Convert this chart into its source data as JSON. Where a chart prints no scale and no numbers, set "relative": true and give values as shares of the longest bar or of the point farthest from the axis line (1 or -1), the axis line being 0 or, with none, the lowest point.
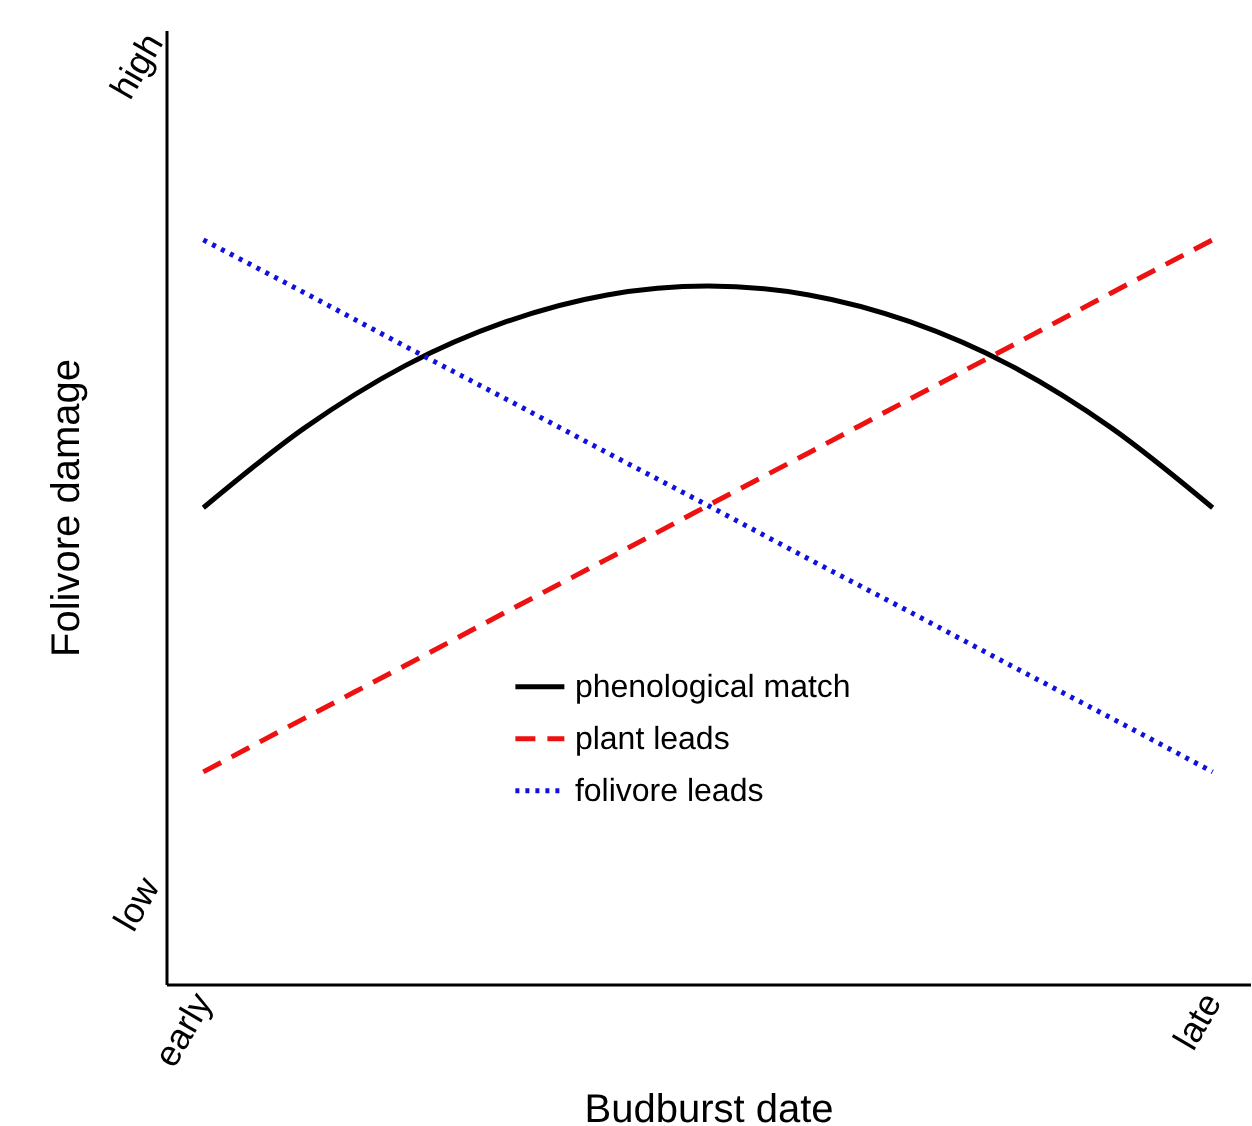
{
  "chart_data": {
    "type": "line",
    "xlabel": "Budburst date",
    "ylabel": "Folivore damage",
    "relative": true,
    "categories": [
      "early",
      null,
      null,
      null,
      null,
      null,
      null,
      null,
      null,
      null,
      "late"
    ],
    "annotations": [
      "low",
      "high"
    ],
    "grid": false,
    "legend": "bottom",
    "marker": "none",
    "series": [
      {
        "name": "phenological match",
        "color": "#000000",
        "line_style": "solid",
        "values": [
          0.64,
          0.747,
          0.831,
          0.89,
          0.926,
          0.938,
          0.926,
          0.89,
          0.831,
          0.747,
          0.64
        ]
      },
      {
        "name": "plant leads",
        "color": "#ee1111",
        "line_style": "dashed",
        "values": [
          0.285,
          0.357,
          0.428,
          0.5,
          0.571,
          0.643,
          0.714,
          0.786,
          0.857,
          0.929,
          1.0
        ]
      },
      {
        "name": "folivore leads",
        "color": "#1111dd",
        "line_style": "dotted",
        "values": [
          1.0,
          0.929,
          0.857,
          0.786,
          0.714,
          0.643,
          0.571,
          0.5,
          0.428,
          0.357,
          0.285
        ]
      }
    ]
  }
}
